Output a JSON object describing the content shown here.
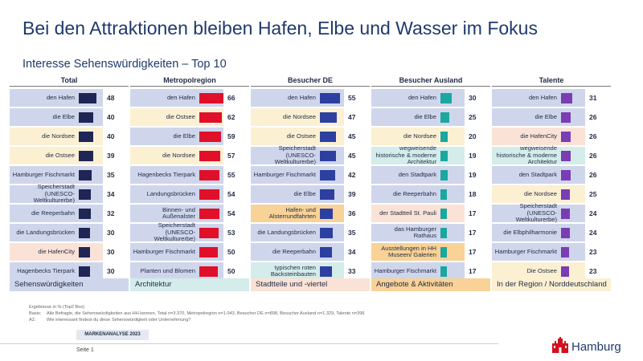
{
  "header": {
    "title": "Bei den Attraktionen bleiben Hafen, Elbe und Wasser im Fokus",
    "subtitle": "Interesse Sehenswürdigkeiten – Top 10"
  },
  "colors": {
    "sehenswuerdigkeiten": "#cfd6ec",
    "architektur": "#d4ecea",
    "stadtteile": "#fbe2d6",
    "angebote": "#f8d296",
    "region": "#fcf0d3",
    "bar_total": "#1f2656",
    "bar_metropolregion": "#e0102a",
    "bar_besucher_de": "#2d3fa0",
    "bar_besucher_ausland": "#1aa7a0",
    "bar_talente": "#7a3db3"
  },
  "legend": [
    {
      "label": "Sehenswürdigkeiten",
      "category": "sehenswuerdigkeiten"
    },
    {
      "label": "Architektur",
      "category": "architektur"
    },
    {
      "label": "Stadtteile und -viertel",
      "category": "stadtteile"
    },
    {
      "label": "Angebote & Aktivitäten",
      "category": "angebote"
    },
    {
      "label": "In der Region / Norddeutschland",
      "category": "region"
    }
  ],
  "chart_data": {
    "type": "bar",
    "title": "Interesse Sehenswürdigkeiten – Top 10",
    "unit": "Ergebnisse in % (Top2 Box)",
    "panels": [
      {
        "name": "Total",
        "items": [
          {
            "label": "den Hafen",
            "value": 48,
            "category": "sehenswuerdigkeiten"
          },
          {
            "label": "die Elbe",
            "value": 40,
            "category": "sehenswuerdigkeiten"
          },
          {
            "label": "die Nordsee",
            "value": 40,
            "category": "region"
          },
          {
            "label": "die Ostsee",
            "value": 39,
            "category": "region"
          },
          {
            "label": "Hamburger Fischmarkt",
            "value": 35,
            "category": "sehenswuerdigkeiten"
          },
          {
            "label": "Speicherstadt (UNESCO-Weltkulturerbe)",
            "value": 34,
            "category": "sehenswuerdigkeiten"
          },
          {
            "label": "die Reeperbahn",
            "value": 32,
            "category": "sehenswuerdigkeiten"
          },
          {
            "label": "die Landungsbrücken",
            "value": 30,
            "category": "sehenswuerdigkeiten"
          },
          {
            "label": "die HafenCity",
            "value": 30,
            "category": "stadtteile"
          },
          {
            "label": "Hagenbecks Tierpark",
            "value": 30,
            "category": "sehenswuerdigkeiten"
          }
        ]
      },
      {
        "name": "Metropolregion",
        "items": [
          {
            "label": "den Hafen",
            "value": 66,
            "category": "sehenswuerdigkeiten"
          },
          {
            "label": "die Ostsee",
            "value": 62,
            "category": "region"
          },
          {
            "label": "die Elbe",
            "value": 59,
            "category": "sehenswuerdigkeiten"
          },
          {
            "label": "die Nordsee",
            "value": 57,
            "category": "region"
          },
          {
            "label": "Hagenbecks Tierpark",
            "value": 55,
            "category": "sehenswuerdigkeiten"
          },
          {
            "label": "Landungsbrücken",
            "value": 54,
            "category": "sehenswuerdigkeiten"
          },
          {
            "label": "Binnen- und Außenalster",
            "value": 54,
            "category": "sehenswuerdigkeiten"
          },
          {
            "label": "Speicherstadt (UNESCO-Weltkulturerbe)",
            "value": 53,
            "category": "sehenswuerdigkeiten"
          },
          {
            "label": "Hamburger Fischmarkt",
            "value": 50,
            "category": "sehenswuerdigkeiten"
          },
          {
            "label": "Planten und Blomen",
            "value": 50,
            "category": "sehenswuerdigkeiten"
          }
        ]
      },
      {
        "name": "Besucher DE",
        "items": [
          {
            "label": "den Hafen",
            "value": 55,
            "category": "sehenswuerdigkeiten"
          },
          {
            "label": "die Nordsee",
            "value": 47,
            "category": "region"
          },
          {
            "label": "die Ostsee",
            "value": 45,
            "category": "region"
          },
          {
            "label": "Speicherstadt (UNESCO-Weltkulturerbe)",
            "value": 45,
            "category": "sehenswuerdigkeiten"
          },
          {
            "label": "Hamburger Fischmarkt",
            "value": 42,
            "category": "sehenswuerdigkeiten"
          },
          {
            "label": "die Elbe",
            "value": 39,
            "category": "sehenswuerdigkeiten"
          },
          {
            "label": "Hafen- und Alsterrundfahrten",
            "value": 36,
            "category": "angebote"
          },
          {
            "label": "die Landungsbrücken",
            "value": 35,
            "category": "sehenswuerdigkeiten"
          },
          {
            "label": "die Reeperbahn",
            "value": 34,
            "category": "sehenswuerdigkeiten"
          },
          {
            "label": "typischen roten Backsteinbauten",
            "value": 33,
            "category": "architektur"
          }
        ]
      },
      {
        "name": "Besucher Ausland",
        "items": [
          {
            "label": "den Hafen",
            "value": 30,
            "category": "sehenswuerdigkeiten"
          },
          {
            "label": "die Elbe",
            "value": 25,
            "category": "sehenswuerdigkeiten"
          },
          {
            "label": "die Nordsee",
            "value": 20,
            "category": "region"
          },
          {
            "label": "wegweisende historische & moderne Architektur",
            "value": 19,
            "category": "architektur"
          },
          {
            "label": "den Stadtpark",
            "value": 19,
            "category": "sehenswuerdigkeiten"
          },
          {
            "label": "die Reeperbahn",
            "value": 18,
            "category": "sehenswuerdigkeiten"
          },
          {
            "label": "der Stadtteil St. Pauli",
            "value": 17,
            "category": "stadtteile"
          },
          {
            "label": "das Hamburger Rathaus",
            "value": 17,
            "category": "sehenswuerdigkeiten"
          },
          {
            "label": "Ausstellungen in HH Museen/ Galerien",
            "value": 17,
            "category": "angebote"
          },
          {
            "label": "Hamburger Fischmarkt",
            "value": 17,
            "category": "sehenswuerdigkeiten"
          }
        ]
      },
      {
        "name": "Talente",
        "items": [
          {
            "label": "den Hafen",
            "value": 31,
            "category": "sehenswuerdigkeiten"
          },
          {
            "label": "die Elbe",
            "value": 26,
            "category": "sehenswuerdigkeiten"
          },
          {
            "label": "die HafenCity",
            "value": 26,
            "category": "stadtteile"
          },
          {
            "label": "wegweisende historische & moderne Architektur",
            "value": 26,
            "category": "architektur"
          },
          {
            "label": "den Stadtpark",
            "value": 26,
            "category": "sehenswuerdigkeiten"
          },
          {
            "label": "die Nordsee",
            "value": 25,
            "category": "region"
          },
          {
            "label": "Speicherstadt (UNESCO-Weltkulturerbe)",
            "value": 24,
            "category": "sehenswuerdigkeiten"
          },
          {
            "label": "die Elbphilharmonie",
            "value": 24,
            "category": "sehenswuerdigkeiten"
          },
          {
            "label": "Hamburger Fischmarkt",
            "value": 23,
            "category": "sehenswuerdigkeiten"
          },
          {
            "label": "Die Ostsee",
            "value": 23,
            "category": "region"
          }
        ]
      }
    ]
  },
  "footnotes": {
    "line1": "Ergebnisse in % (Top2 Box)",
    "line2_key": "Basis:",
    "line2_text": "Alle Befragte, die Sehenswürdigkeiten aus HH kennen, Total n=3.370, Metropolregion n=1.043, Besucher DE n=898, Besucher Ausland n=1.329, Talente n=396",
    "line3_key": "A2.",
    "line3_text": "Wie interessant findest du diese Sehenswürdigkeit oder Unternehmung?"
  },
  "footer": {
    "brand_label": "MARKENANALYSE 2023",
    "page_label": "Seite 1",
    "logo_text": "Hamburg"
  }
}
